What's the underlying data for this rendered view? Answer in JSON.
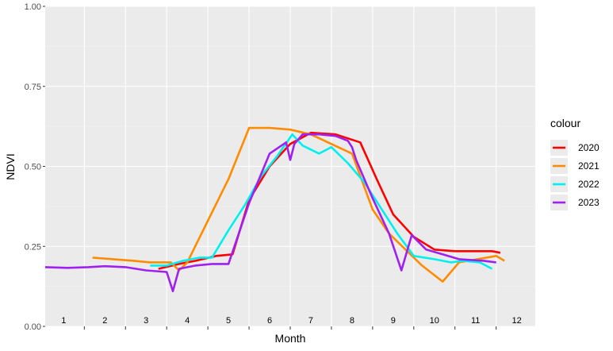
{
  "chart_data": {
    "type": "line",
    "xlabel": "Month",
    "ylabel": "NDVI",
    "ylim": [
      0,
      1
    ],
    "xlim": [
      0.55,
      12.45
    ],
    "yticks": [
      "0.00",
      "0.25",
      "0.50",
      "0.75",
      "1.00"
    ],
    "ytick_values": [
      0,
      0.25,
      0.5,
      0.75,
      1.0
    ],
    "month_labels": [
      "1",
      "2",
      "3",
      "4",
      "5",
      "6",
      "7",
      "8",
      "9",
      "10",
      "11",
      "12"
    ],
    "grid": true,
    "legend": {
      "title": "colour",
      "placement": "right"
    },
    "series": [
      {
        "name": "2020",
        "color": "#ff0000",
        "points": [
          [
            3.3,
            0.18
          ],
          [
            3.8,
            0.195
          ],
          [
            4.2,
            0.205
          ],
          [
            4.7,
            0.22
          ],
          [
            5.1,
            0.225
          ],
          [
            5.5,
            0.395
          ],
          [
            6.0,
            0.5
          ],
          [
            6.5,
            0.57
          ],
          [
            7.0,
            0.605
          ],
          [
            7.6,
            0.6
          ],
          [
            8.2,
            0.575
          ],
          [
            8.6,
            0.46
          ],
          [
            9.0,
            0.35
          ],
          [
            9.5,
            0.28
          ],
          [
            10.0,
            0.24
          ],
          [
            10.5,
            0.235
          ],
          [
            11.0,
            0.235
          ],
          [
            11.4,
            0.235
          ],
          [
            11.6,
            0.23
          ]
        ]
      },
      {
        "name": "2021",
        "color": "#ff8c00",
        "points": [
          [
            1.7,
            0.215
          ],
          [
            2.2,
            0.21
          ],
          [
            2.7,
            0.205
          ],
          [
            3.1,
            0.2
          ],
          [
            3.6,
            0.2
          ],
          [
            3.8,
            0.175
          ],
          [
            4.0,
            0.2
          ],
          [
            4.5,
            0.33
          ],
          [
            5.0,
            0.46
          ],
          [
            5.5,
            0.62
          ],
          [
            6.0,
            0.62
          ],
          [
            6.5,
            0.615
          ],
          [
            7.0,
            0.6
          ],
          [
            7.5,
            0.57
          ],
          [
            8.0,
            0.54
          ],
          [
            8.5,
            0.365
          ],
          [
            8.9,
            0.29
          ],
          [
            9.3,
            0.24
          ],
          [
            9.7,
            0.19
          ],
          [
            10.2,
            0.14
          ],
          [
            10.6,
            0.2
          ],
          [
            11.5,
            0.22
          ],
          [
            11.7,
            0.205
          ]
        ]
      },
      {
        "name": "2022",
        "color": "#00f0f0",
        "points": [
          [
            3.1,
            0.19
          ],
          [
            3.5,
            0.19
          ],
          [
            3.9,
            0.205
          ],
          [
            4.3,
            0.215
          ],
          [
            4.6,
            0.215
          ],
          [
            5.0,
            0.3
          ],
          [
            5.4,
            0.38
          ],
          [
            5.8,
            0.47
          ],
          [
            6.2,
            0.535
          ],
          [
            6.55,
            0.6
          ],
          [
            6.8,
            0.565
          ],
          [
            7.2,
            0.54
          ],
          [
            7.5,
            0.56
          ],
          [
            7.9,
            0.51
          ],
          [
            8.3,
            0.45
          ],
          [
            8.7,
            0.37
          ],
          [
            9.1,
            0.29
          ],
          [
            9.5,
            0.22
          ],
          [
            10.0,
            0.21
          ],
          [
            10.4,
            0.2
          ],
          [
            10.7,
            0.205
          ],
          [
            11.1,
            0.2
          ],
          [
            11.4,
            0.18
          ]
        ]
      },
      {
        "name": "2023",
        "color": "#a020f0",
        "points": [
          [
            0.55,
            0.185
          ],
          [
            1.1,
            0.183
          ],
          [
            1.6,
            0.185
          ],
          [
            2.0,
            0.188
          ],
          [
            2.5,
            0.185
          ],
          [
            3.0,
            0.175
          ],
          [
            3.5,
            0.17
          ],
          [
            3.65,
            0.11
          ],
          [
            3.8,
            0.18
          ],
          [
            4.2,
            0.19
          ],
          [
            4.6,
            0.195
          ],
          [
            5.0,
            0.195
          ],
          [
            5.5,
            0.385
          ],
          [
            6.0,
            0.54
          ],
          [
            6.4,
            0.575
          ],
          [
            6.5,
            0.52
          ],
          [
            6.6,
            0.57
          ],
          [
            6.8,
            0.6
          ],
          [
            7.2,
            0.6
          ],
          [
            7.6,
            0.595
          ],
          [
            7.9,
            0.58
          ],
          [
            8.0,
            0.56
          ],
          [
            8.1,
            0.52
          ],
          [
            8.5,
            0.4
          ],
          [
            8.9,
            0.29
          ],
          [
            9.2,
            0.175
          ],
          [
            9.45,
            0.285
          ],
          [
            9.8,
            0.24
          ],
          [
            10.2,
            0.225
          ],
          [
            10.6,
            0.21
          ],
          [
            11.2,
            0.205
          ],
          [
            11.5,
            0.2
          ]
        ]
      }
    ]
  }
}
